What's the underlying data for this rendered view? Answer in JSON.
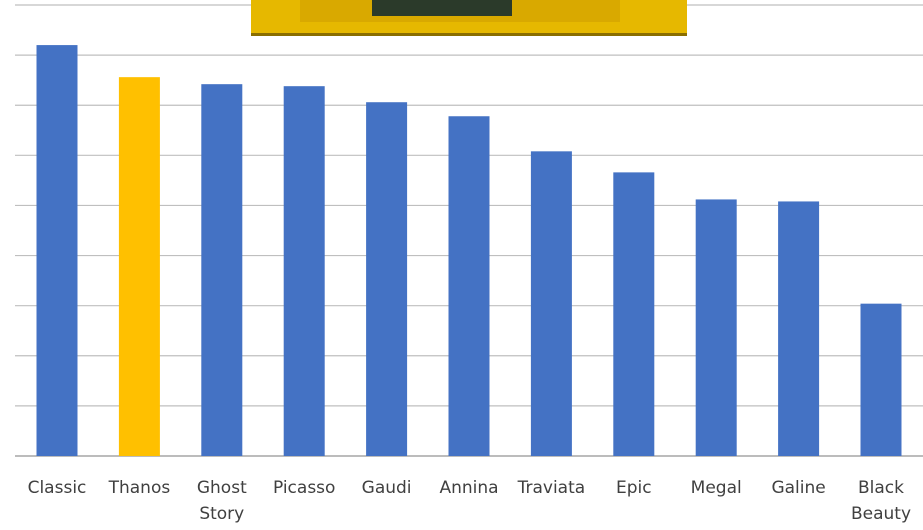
{
  "chart_data": {
    "type": "bar",
    "title": "",
    "xlabel": "",
    "ylabel": "",
    "categories": [
      [
        "Classic"
      ],
      [
        "Thanos"
      ],
      [
        "Ghost",
        "Story"
      ],
      [
        "Picasso"
      ],
      [
        "Gaudi"
      ],
      [
        "Annina"
      ],
      [
        "Traviata"
      ],
      [
        "Epic"
      ],
      [
        "Megal"
      ],
      [
        "Galine"
      ],
      [
        "Black",
        "Beauty"
      ]
    ],
    "values": [
      8.2,
      7.56,
      7.42,
      7.38,
      7.06,
      6.78,
      6.08,
      5.66,
      5.12,
      5.08,
      3.04
    ],
    "highlight_index": 1,
    "ylim": [
      0,
      9
    ],
    "y_gridlines": 9,
    "grid": true,
    "legend": "none",
    "colors": {
      "bar": "#4472C4",
      "highlight": "#FFC000",
      "grid": "#BFBFBF",
      "axis": "#A6A6A6",
      "label": "#404040"
    }
  },
  "overlay_image": {
    "description_icon": "photo-thumbnail",
    "colors": {
      "frame": "#E6B800",
      "inner": "#D9A900",
      "dark": "#2B3A2A"
    }
  }
}
